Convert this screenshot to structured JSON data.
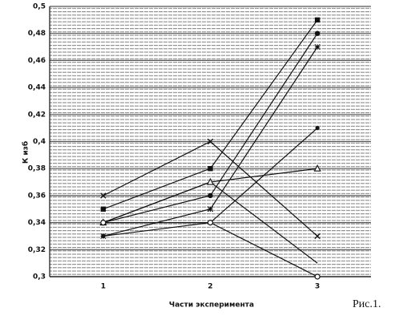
{
  "chart_data": {
    "type": "line",
    "x_label": "Части эксперимента",
    "y_label": "К изб",
    "annotation": "Рис.1.",
    "categories": [
      "1",
      "2",
      "3"
    ],
    "series": [
      {
        "color": "#111111",
        "marker": "x",
        "values": [
          0.36,
          0.4,
          0.33
        ]
      },
      {
        "color": "#111111",
        "marker": "square",
        "values": [
          0.35,
          0.38,
          0.49
        ]
      },
      {
        "color": "#111111",
        "marker": "none",
        "values": [
          0.34,
          0.37,
          0.31
        ]
      },
      {
        "color": "#111111",
        "marker": "circle",
        "values": [
          0.34,
          0.36,
          0.48
        ]
      },
      {
        "color": "#111111",
        "marker": "triangle",
        "values": [
          0.34,
          0.37,
          0.38
        ]
      },
      {
        "color": "#111111",
        "marker": "star",
        "values": [
          0.33,
          0.35,
          0.47
        ]
      },
      {
        "color": "#111111",
        "marker": "dot",
        "values": [
          0.33,
          0.34,
          0.41
        ]
      },
      {
        "color": "#111111",
        "marker": "open-circle",
        "values": [
          0.34,
          0.34,
          0.3
        ]
      }
    ],
    "ylim": [
      0.3,
      0.5
    ],
    "yticks": [
      {
        "value": 0.3,
        "label": "0,3"
      },
      {
        "value": 0.32,
        "label": "0,32"
      },
      {
        "value": 0.34,
        "label": "0,34"
      },
      {
        "value": 0.36,
        "label": "0,36"
      },
      {
        "value": 0.38,
        "label": "0,38"
      },
      {
        "value": 0.4,
        "label": "0,4"
      },
      {
        "value": 0.42,
        "label": "0,42"
      },
      {
        "value": 0.44,
        "label": "0,44"
      },
      {
        "value": 0.46,
        "label": "0,46"
      },
      {
        "value": 0.48,
        "label": "0,48"
      },
      {
        "value": 0.5,
        "label": "0,5"
      }
    ],
    "grid": true
  }
}
